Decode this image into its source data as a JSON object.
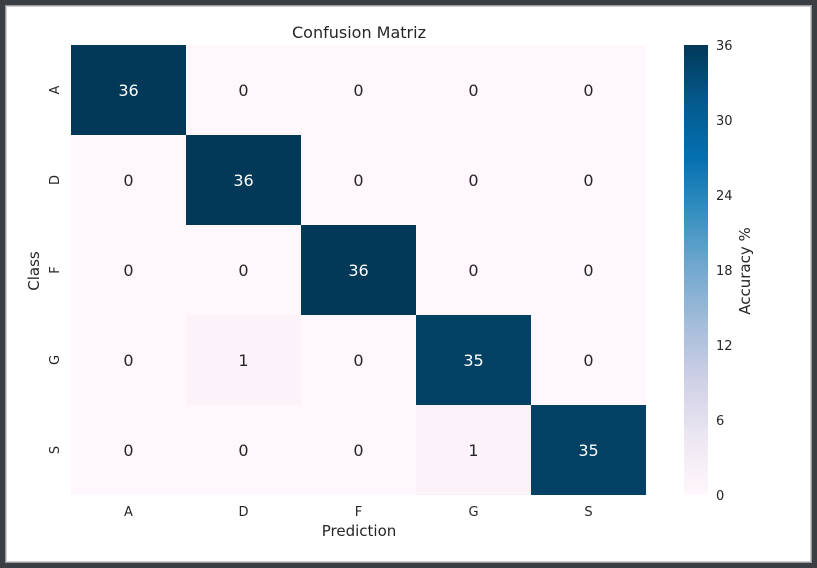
{
  "chart_data": {
    "type": "heatmap",
    "title": "Confusion Matriz",
    "xlabel": "Prediction",
    "ylabel": "Class",
    "x_categories": [
      "A",
      "D",
      "F",
      "G",
      "S"
    ],
    "y_categories": [
      "A",
      "D",
      "F",
      "G",
      "S"
    ],
    "matrix": [
      [
        36,
        0,
        0,
        0,
        0
      ],
      [
        0,
        36,
        0,
        0,
        0
      ],
      [
        0,
        0,
        36,
        0,
        0
      ],
      [
        0,
        1,
        0,
        35,
        0
      ],
      [
        0,
        0,
        0,
        1,
        35
      ]
    ],
    "colorbar": {
      "label": "Accuracy %",
      "range": [
        0,
        36
      ],
      "ticks": [
        0,
        6,
        12,
        18,
        24,
        30,
        36
      ]
    },
    "colormap": [
      "#fff7fb",
      "#ece7f2",
      "#d0d1e6",
      "#a6bddb",
      "#74a9cf",
      "#3690c0",
      "#0570b0",
      "#045a8d",
      "#023858"
    ],
    "text_color_light": "#ffffff",
    "text_color_dark": "#262626"
  }
}
